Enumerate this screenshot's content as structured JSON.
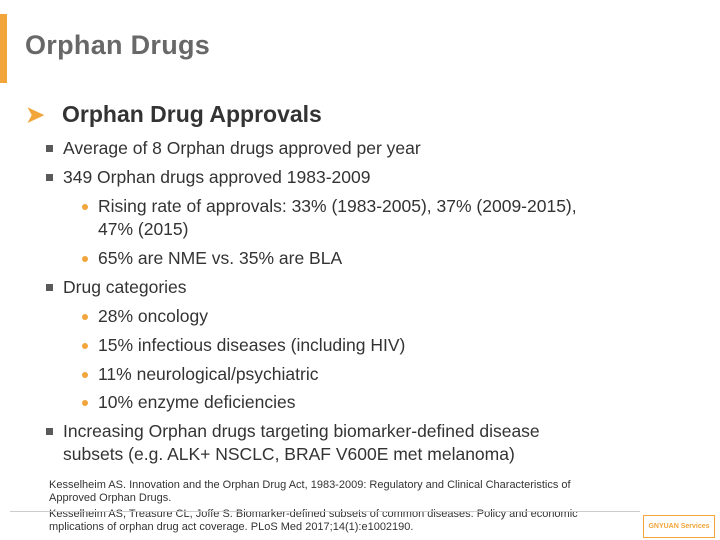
{
  "slide": {
    "title": "Orphan Drugs",
    "heading": "Orphan Drug Approvals",
    "lines": [
      "Average of 8 Orphan drugs approved per year",
      "349 Orphan drugs approved 1983-2009",
      "Rising rate of approvals: 33% (1983-2005), 37% (2009-2015),",
      "47% (2015)",
      "65% are NME vs. 35% are BLA",
      "Drug categories",
      "28% oncology",
      "15% infectious diseases (including HIV)",
      "11% neurological/psychiatric",
      "10% enzyme deficiencies",
      "Increasing Orphan drugs targeting biomarker-defined disease",
      "subsets (e.g. ALK+ NSCLC, BRAF V600E met melanoma)"
    ],
    "references": [
      "Kesselheim AS. Innovation and the Orphan Drug Act, 1983-2009: Regulatory and Clinical Characteristics of",
      "Approved Orphan Drugs.",
      "Kesselheim AS, Treasure CL, Joffe S. Biomarker-defined subsets of common diseases: Policy and economic",
      "mplications of orphan drug act coverage. PLoS Med 2017;14(1):e1002190."
    ],
    "logo_text": "GNYUAN Services"
  },
  "colors": {
    "accent": "#f2a53a",
    "text": "#333333",
    "title": "#686868"
  }
}
